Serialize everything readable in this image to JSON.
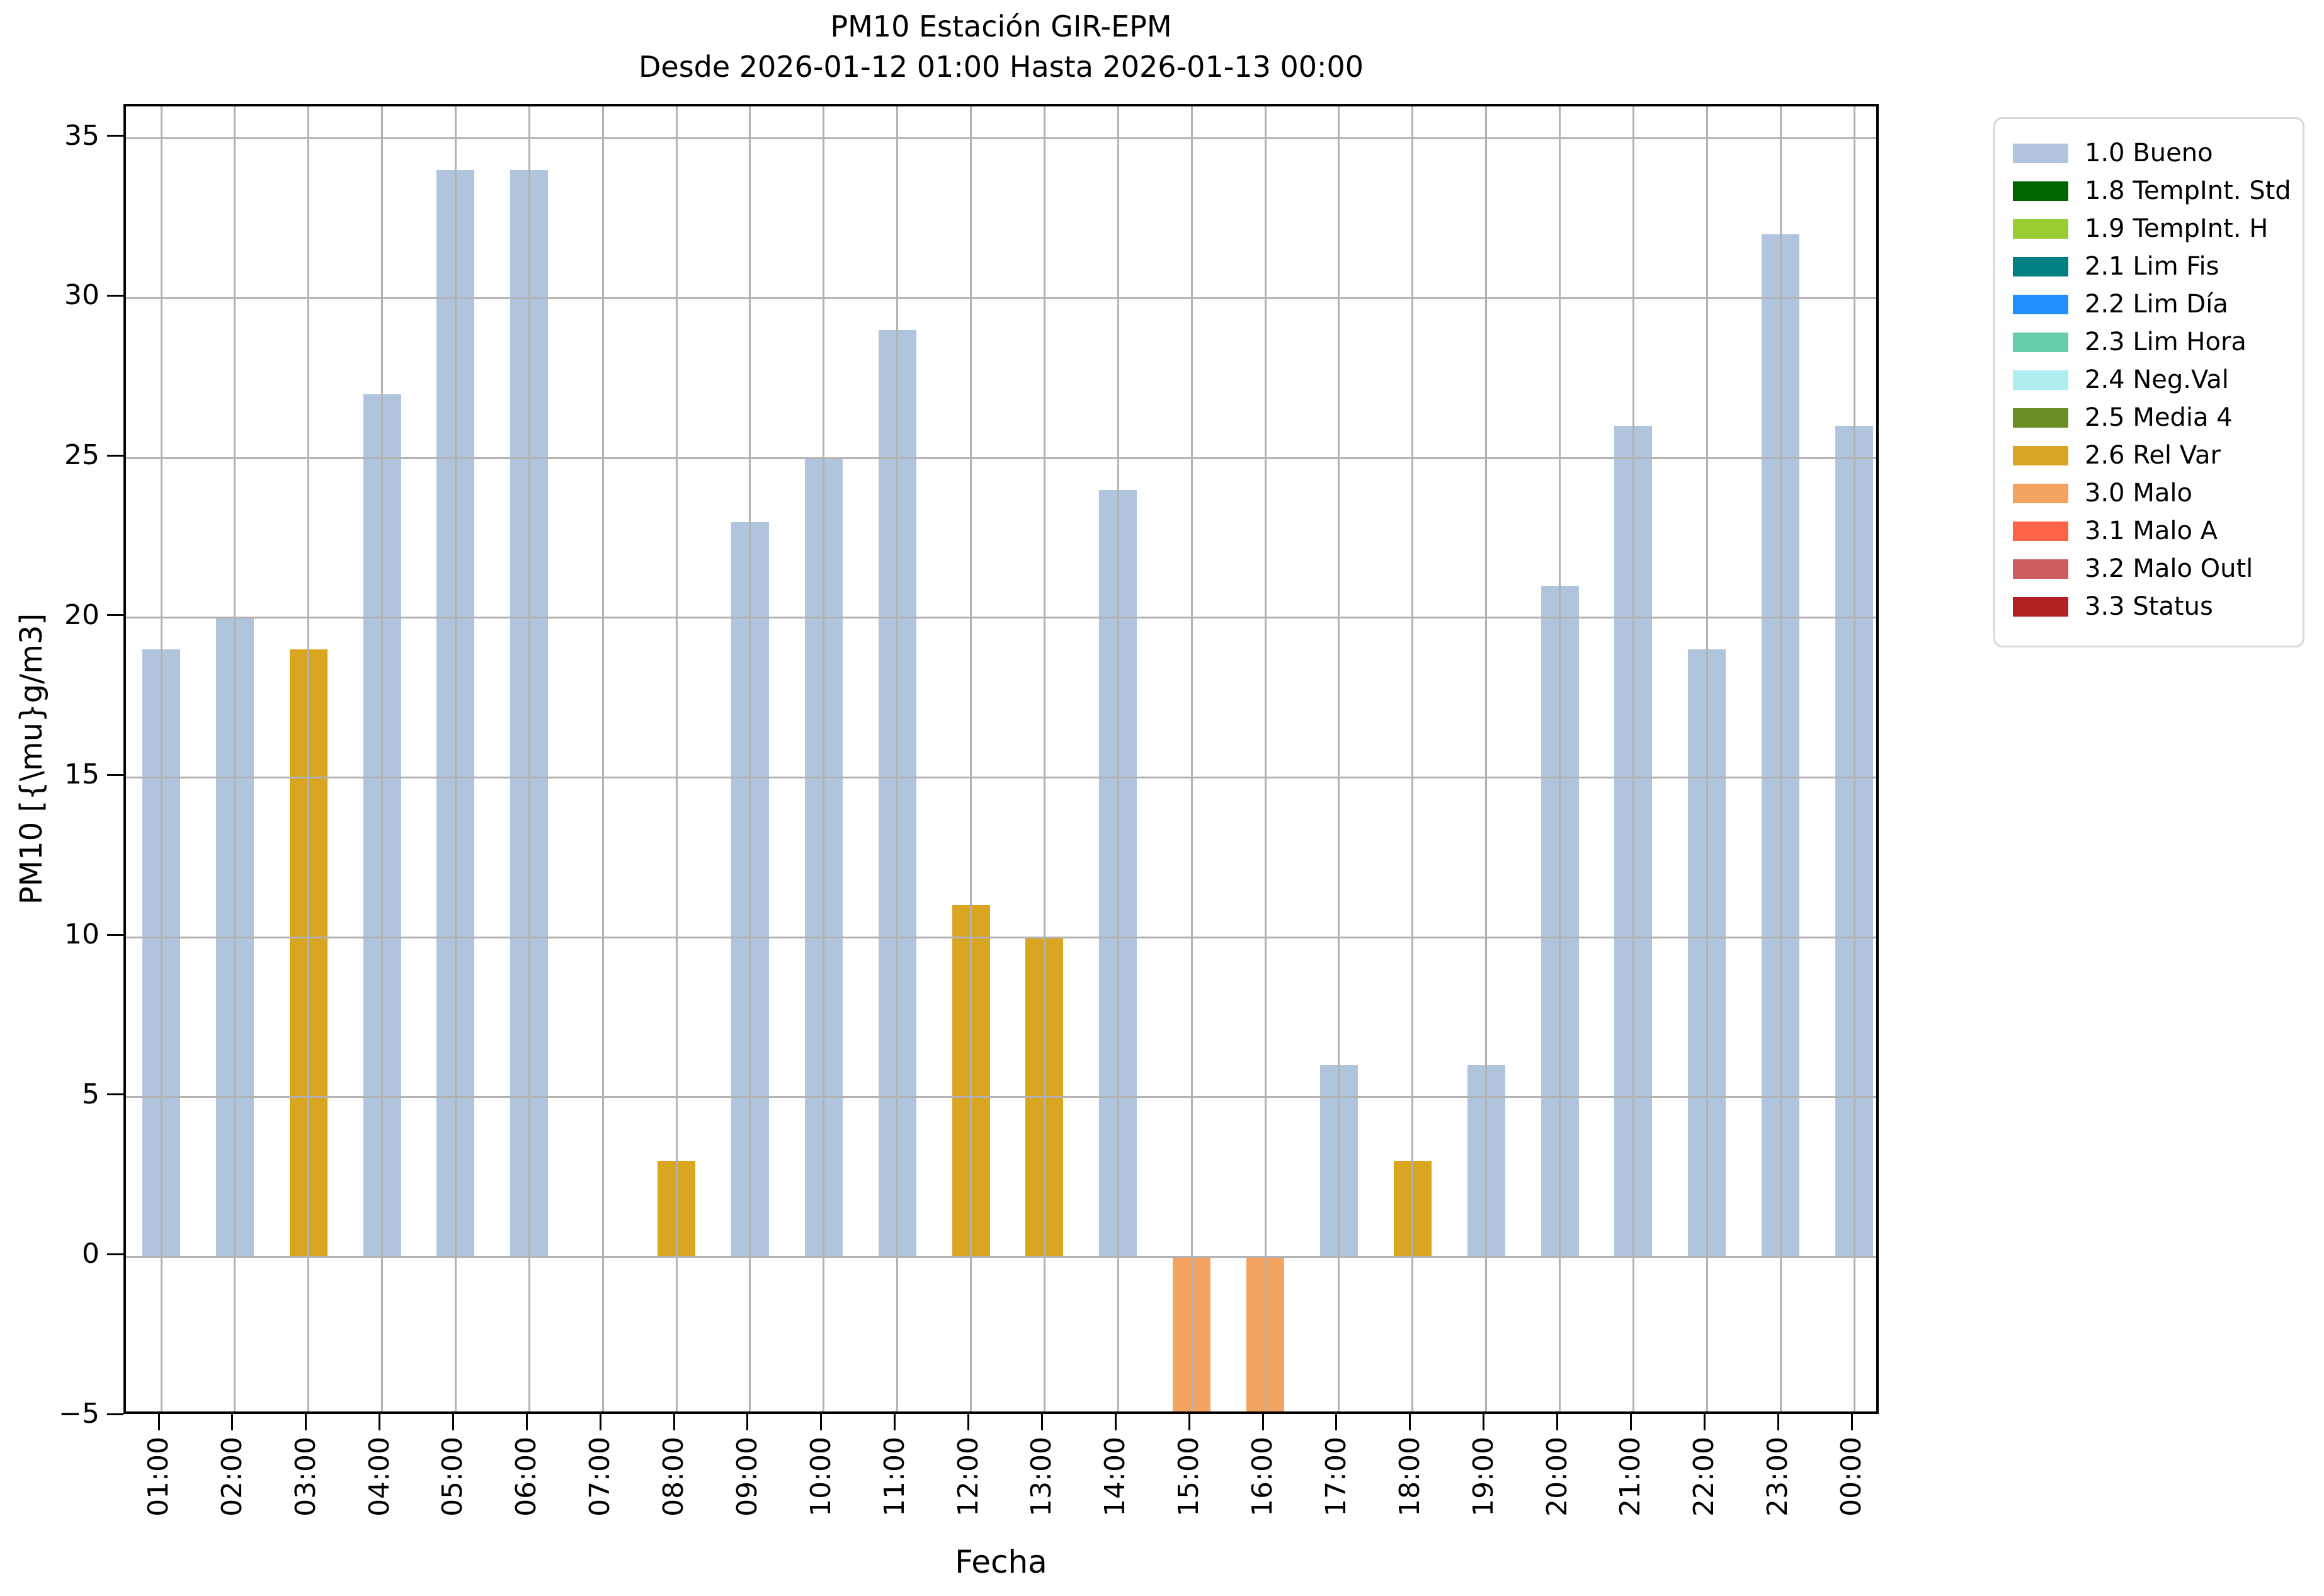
{
  "chart_data": {
    "type": "bar",
    "title": "PM10 Estación GIR-EPM",
    "subtitle": "Desde 2026-01-12 01:00 Hasta 2026-01-13 00:00",
    "xlabel": "Fecha",
    "ylabel": "PM10 [{\\mu}g/m3]",
    "ylim": [
      -5,
      36
    ],
    "yticks": [
      35,
      30,
      25,
      20,
      15,
      10,
      5,
      0,
      -5
    ],
    "ytick_labels": [
      "35",
      "30",
      "25",
      "20",
      "15",
      "10",
      "5",
      "0",
      "−5"
    ],
    "grid": true,
    "legend_position": "outside-upper-right",
    "categories": [
      "01:00",
      "02:00",
      "03:00",
      "04:00",
      "05:00",
      "06:00",
      "07:00",
      "08:00",
      "09:00",
      "10:00",
      "11:00",
      "12:00",
      "13:00",
      "14:00",
      "15:00",
      "16:00",
      "17:00",
      "18:00",
      "19:00",
      "20:00",
      "21:00",
      "22:00",
      "23:00",
      "00:00"
    ],
    "values": [
      19,
      20,
      19,
      27,
      34,
      34,
      0,
      3,
      23,
      25,
      29,
      11,
      10,
      24,
      -5,
      -5,
      6,
      3,
      6,
      21,
      26,
      19,
      32,
      26
    ],
    "statuses": [
      "1.0",
      "1.0",
      "2.6",
      "1.0",
      "1.0",
      "1.0",
      null,
      "2.6",
      "1.0",
      "1.0",
      "1.0",
      "2.6",
      "2.6",
      "1.0",
      "3.0",
      "3.0",
      "1.0",
      "2.6",
      "1.0",
      "1.0",
      "1.0",
      "1.0",
      "1.0",
      "1.0"
    ],
    "status_colors": {
      "1.0": "#b0c4de",
      "1.8": "#006400",
      "1.9": "#9acd32",
      "2.1": "#008080",
      "2.2": "#1e90ff",
      "2.3": "#66cdaa",
      "2.4": "#afeeee",
      "2.5": "#6b8e23",
      "2.6": "#daa520",
      "3.0": "#f4a460",
      "3.1": "#ff6347",
      "3.2": "#cd5c5c",
      "3.3": "#b22222"
    },
    "legend": [
      {
        "label": "1.0 Bueno",
        "color": "#b0c4de"
      },
      {
        "label": "1.8 TempInt. Std",
        "color": "#006400"
      },
      {
        "label": "1.9 TempInt. H",
        "color": "#9acd32"
      },
      {
        "label": "2.1 Lim Fis",
        "color": "#008080"
      },
      {
        "label": "2.2 Lim Día",
        "color": "#1e90ff"
      },
      {
        "label": "2.3 Lim Hora",
        "color": "#66cdaa"
      },
      {
        "label": "2.4 Neg.Val",
        "color": "#afeeee"
      },
      {
        "label": "2.5 Media 4",
        "color": "#6b8e23"
      },
      {
        "label": "2.6 Rel Var",
        "color": "#daa520"
      },
      {
        "label": "3.0 Malo",
        "color": "#f4a460"
      },
      {
        "label": "3.1 Malo A",
        "color": "#ff6347"
      },
      {
        "label": "3.2 Malo Outl",
        "color": "#cd5c5c"
      },
      {
        "label": "3.3 Status",
        "color": "#b22222"
      }
    ]
  }
}
